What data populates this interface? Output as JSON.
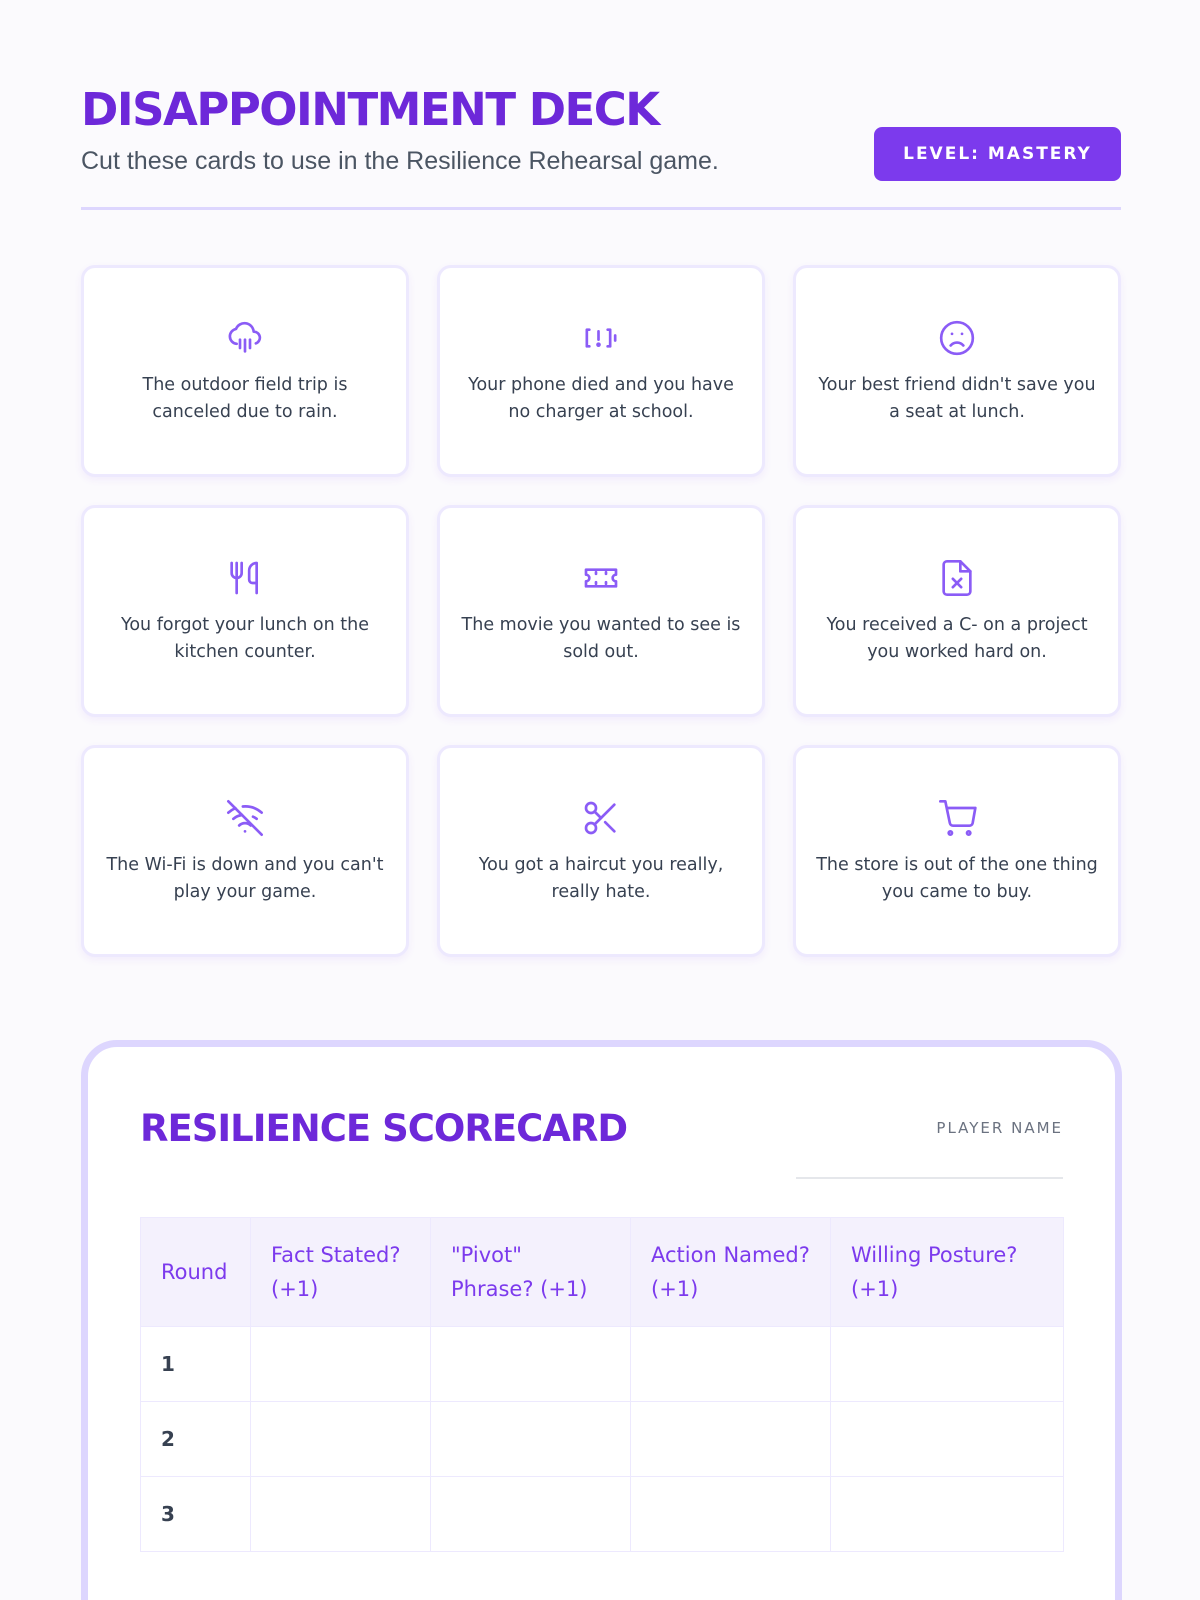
{
  "header": {
    "title": "DISAPPOINTMENT DECK",
    "subtitle": "Cut these cards to use in the Resilience Rehearsal game.",
    "level_badge": "LEVEL: MASTERY"
  },
  "colors": {
    "accent": "#7c3aed",
    "title": "#6d28d9",
    "border": "#ddd6fe"
  },
  "cards": [
    {
      "icon": "cloud-rain-icon",
      "text": "The outdoor field trip is canceled due to rain."
    },
    {
      "icon": "battery-alert-icon",
      "text": "Your phone died and you have no charger at school."
    },
    {
      "icon": "sad-face-icon",
      "text": "Your best friend didn't save you a seat at lunch."
    },
    {
      "icon": "utensils-icon",
      "text": "You forgot your lunch on the kitchen counter."
    },
    {
      "icon": "ticket-icon",
      "text": "The movie you wanted to see is sold out."
    },
    {
      "icon": "file-x-icon",
      "text": "You received a C- on a project you worked hard on."
    },
    {
      "icon": "wifi-off-icon",
      "text": "The Wi-Fi is down and you can't play your game."
    },
    {
      "icon": "scissors-icon",
      "text": "You got a haircut you really, really hate."
    },
    {
      "icon": "shopping-cart-icon",
      "text": "The store is out of the one thing you came to buy."
    }
  ],
  "scorecard": {
    "title": "RESILIENCE SCORECARD",
    "player_label": "PLAYER NAME",
    "columns": [
      "Round",
      "Fact Stated? (+1)",
      "\"Pivot\" Phrase? (+1)",
      "Action Named? (+1)",
      "Willing Posture? (+1)"
    ],
    "rows": [
      "1",
      "2",
      "3"
    ]
  }
}
